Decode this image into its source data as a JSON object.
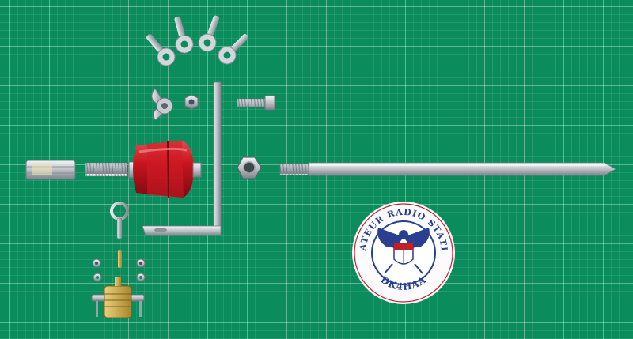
{
  "photo": {
    "subject": "Vertical antenna kit parts laid out on a green cutting mat",
    "colors": {
      "mat": "#0b8c5c",
      "insulator": "#c8141e",
      "metal": "#c9cdd1",
      "seal_ring": "#ffffff",
      "seal_navy": "#2a3f8f",
      "seal_red": "#c0202a"
    }
  },
  "seal": {
    "top_text": "AMATEUR RADIO STATION",
    "bottom_text": "DK4HAA"
  }
}
